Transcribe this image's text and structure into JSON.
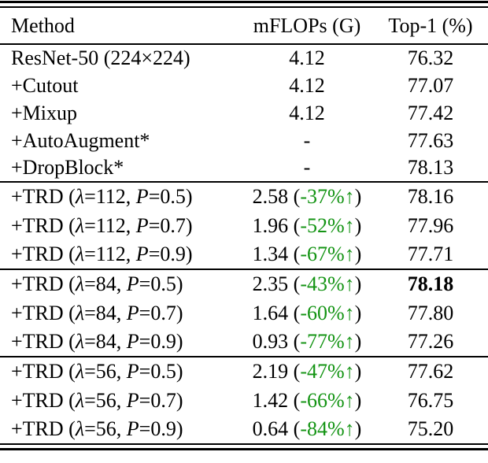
{
  "colors": {
    "text": "#000000",
    "rule": "#000000",
    "accent_green": "#149414"
  },
  "header": {
    "columns": [
      {
        "label": "Method",
        "align": "left"
      },
      {
        "label": "mFLOPs (G)",
        "align": "center"
      },
      {
        "label": "Top-1 (%)",
        "align": "center"
      }
    ]
  },
  "groups": [
    {
      "rows": [
        {
          "method": [
            {
              "t": "ResNet-50 (224×224)"
            }
          ],
          "mflops": [
            {
              "t": "4.12"
            }
          ],
          "top1": [
            {
              "t": "76.32"
            }
          ]
        },
        {
          "method": [
            {
              "t": "+Cutout"
            }
          ],
          "mflops": [
            {
              "t": "4.12"
            }
          ],
          "top1": [
            {
              "t": "77.07"
            }
          ]
        },
        {
          "method": [
            {
              "t": "+Mixup"
            }
          ],
          "mflops": [
            {
              "t": "4.12"
            }
          ],
          "top1": [
            {
              "t": "77.42"
            }
          ]
        },
        {
          "method": [
            {
              "t": "+AutoAugment*"
            }
          ],
          "mflops": [
            {
              "t": "-"
            }
          ],
          "top1": [
            {
              "t": "77.63"
            }
          ]
        },
        {
          "method": [
            {
              "t": "+DropBlock*"
            }
          ],
          "mflops": [
            {
              "t": "-"
            }
          ],
          "top1": [
            {
              "t": "78.13"
            }
          ]
        }
      ]
    },
    {
      "rows": [
        {
          "method": [
            {
              "t": "+TRD ("
            },
            {
              "t": "λ",
              "i": true
            },
            {
              "t": "=112, "
            },
            {
              "t": "P",
              "i": true
            },
            {
              "t": "=0.5)"
            }
          ],
          "mflops": [
            {
              "t": "2.58 ("
            },
            {
              "t": "-37%↑",
              "c": "green"
            },
            {
              "t": ")"
            }
          ],
          "top1": [
            {
              "t": "78.16"
            }
          ]
        },
        {
          "method": [
            {
              "t": "+TRD ("
            },
            {
              "t": "λ",
              "i": true
            },
            {
              "t": "=112, "
            },
            {
              "t": "P",
              "i": true
            },
            {
              "t": "=0.7)"
            }
          ],
          "mflops": [
            {
              "t": "1.96 ("
            },
            {
              "t": "-52%↑",
              "c": "green"
            },
            {
              "t": ")"
            }
          ],
          "top1": [
            {
              "t": "77.96"
            }
          ]
        },
        {
          "method": [
            {
              "t": "+TRD ("
            },
            {
              "t": "λ",
              "i": true
            },
            {
              "t": "=112, "
            },
            {
              "t": "P",
              "i": true
            },
            {
              "t": "=0.9)"
            }
          ],
          "mflops": [
            {
              "t": "1.34 ("
            },
            {
              "t": "-67%↑",
              "c": "green"
            },
            {
              "t": ")"
            }
          ],
          "top1": [
            {
              "t": "77.71"
            }
          ]
        }
      ]
    },
    {
      "rows": [
        {
          "method": [
            {
              "t": "+TRD ("
            },
            {
              "t": "λ",
              "i": true
            },
            {
              "t": "=84, "
            },
            {
              "t": "P",
              "i": true
            },
            {
              "t": "=0.5)"
            }
          ],
          "mflops": [
            {
              "t": "2.35 ("
            },
            {
              "t": "-43%↑",
              "c": "green"
            },
            {
              "t": ")"
            }
          ],
          "top1": [
            {
              "t": "78.18",
              "b": true
            }
          ]
        },
        {
          "method": [
            {
              "t": "+TRD ("
            },
            {
              "t": "λ",
              "i": true
            },
            {
              "t": "=84, "
            },
            {
              "t": "P",
              "i": true
            },
            {
              "t": "=0.7)"
            }
          ],
          "mflops": [
            {
              "t": "1.64 ("
            },
            {
              "t": "-60%↑",
              "c": "green"
            },
            {
              "t": ")"
            }
          ],
          "top1": [
            {
              "t": "77.80"
            }
          ]
        },
        {
          "method": [
            {
              "t": "+TRD ("
            },
            {
              "t": "λ",
              "i": true
            },
            {
              "t": "=84, "
            },
            {
              "t": "P",
              "i": true
            },
            {
              "t": "=0.9)"
            }
          ],
          "mflops": [
            {
              "t": "0.93 ("
            },
            {
              "t": "-77%↑",
              "c": "green"
            },
            {
              "t": ")"
            }
          ],
          "top1": [
            {
              "t": "77.26"
            }
          ]
        }
      ]
    },
    {
      "rows": [
        {
          "method": [
            {
              "t": "+TRD ("
            },
            {
              "t": "λ",
              "i": true
            },
            {
              "t": "=56, "
            },
            {
              "t": "P",
              "i": true
            },
            {
              "t": "=0.5)"
            }
          ],
          "mflops": [
            {
              "t": "2.19 ("
            },
            {
              "t": "-47%↑",
              "c": "green"
            },
            {
              "t": ")"
            }
          ],
          "top1": [
            {
              "t": "77.62"
            }
          ]
        },
        {
          "method": [
            {
              "t": "+TRD ("
            },
            {
              "t": "λ",
              "i": true
            },
            {
              "t": "=56, "
            },
            {
              "t": "P",
              "i": true
            },
            {
              "t": "=0.7)"
            }
          ],
          "mflops": [
            {
              "t": "1.42 ("
            },
            {
              "t": "-66%↑",
              "c": "green"
            },
            {
              "t": ")"
            }
          ],
          "top1": [
            {
              "t": "76.75"
            }
          ]
        },
        {
          "method": [
            {
              "t": "+TRD ("
            },
            {
              "t": "λ",
              "i": true
            },
            {
              "t": "=56, "
            },
            {
              "t": "P",
              "i": true
            },
            {
              "t": "=0.9)"
            }
          ],
          "mflops": [
            {
              "t": "0.64 ("
            },
            {
              "t": "-84%↑",
              "c": "green"
            },
            {
              "t": ")"
            }
          ],
          "top1": [
            {
              "t": "75.20"
            }
          ]
        }
      ]
    }
  ]
}
